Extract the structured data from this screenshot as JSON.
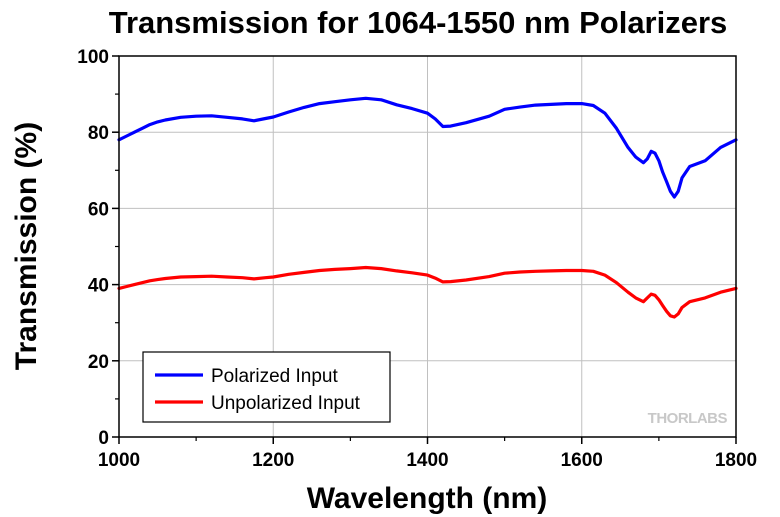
{
  "chart_data": {
    "type": "line",
    "title": "Transmission for 1064-1550 nm Polarizers",
    "xlabel": "Wavelength (nm)",
    "ylabel": "Transmission (%)",
    "xlim": [
      1000,
      1800
    ],
    "ylim": [
      0,
      100
    ],
    "x_ticks": [
      1000,
      1200,
      1400,
      1600,
      1800
    ],
    "y_ticks": [
      0,
      20,
      40,
      60,
      80,
      100
    ],
    "grid": true,
    "legend_position": "bottom-left",
    "watermark": "THORLABS",
    "series": [
      {
        "name": "Polarized Input",
        "color": "#0000ff",
        "x": [
          1000,
          1010,
          1020,
          1030,
          1040,
          1050,
          1060,
          1080,
          1100,
          1120,
          1140,
          1160,
          1175,
          1190,
          1200,
          1220,
          1240,
          1260,
          1280,
          1300,
          1320,
          1340,
          1360,
          1380,
          1400,
          1410,
          1420,
          1430,
          1450,
          1480,
          1500,
          1520,
          1540,
          1560,
          1580,
          1600,
          1615,
          1630,
          1645,
          1660,
          1670,
          1680,
          1685,
          1690,
          1695,
          1700,
          1705,
          1710,
          1715,
          1720,
          1725,
          1730,
          1740,
          1760,
          1780,
          1800
        ],
        "y": [
          78,
          79,
          80,
          81,
          82,
          82.7,
          83.2,
          83.9,
          84.2,
          84.3,
          83.9,
          83.5,
          83.0,
          83.6,
          84.0,
          85.3,
          86.5,
          87.5,
          88.0,
          88.5,
          88.9,
          88.5,
          87.2,
          86.2,
          85.0,
          83.5,
          81.5,
          81.6,
          82.5,
          84.2,
          86.0,
          86.6,
          87.1,
          87.3,
          87.5,
          87.5,
          87.0,
          85.0,
          81.0,
          76.0,
          73.5,
          72.0,
          73.0,
          75.0,
          74.5,
          72.5,
          69.5,
          67.0,
          64.5,
          63.0,
          64.5,
          68.0,
          71.0,
          72.5,
          76.0,
          78.0
        ]
      },
      {
        "name": "Unpolarized Input",
        "color": "#ff0000",
        "x": [
          1000,
          1010,
          1020,
          1030,
          1040,
          1050,
          1060,
          1080,
          1100,
          1120,
          1140,
          1160,
          1175,
          1190,
          1200,
          1220,
          1240,
          1260,
          1280,
          1300,
          1320,
          1340,
          1360,
          1380,
          1400,
          1410,
          1420,
          1430,
          1450,
          1480,
          1500,
          1520,
          1540,
          1560,
          1580,
          1600,
          1615,
          1630,
          1645,
          1660,
          1670,
          1680,
          1685,
          1690,
          1695,
          1700,
          1705,
          1710,
          1715,
          1720,
          1725,
          1730,
          1740,
          1760,
          1780,
          1800
        ],
        "y": [
          39,
          39.5,
          40,
          40.5,
          41,
          41.3,
          41.6,
          42.0,
          42.1,
          42.2,
          42.0,
          41.8,
          41.5,
          41.8,
          42.0,
          42.7,
          43.2,
          43.7,
          44.0,
          44.2,
          44.5,
          44.2,
          43.6,
          43.1,
          42.5,
          41.7,
          40.7,
          40.8,
          41.2,
          42.1,
          43.0,
          43.3,
          43.5,
          43.6,
          43.7,
          43.7,
          43.5,
          42.5,
          40.5,
          38.0,
          36.5,
          35.5,
          36.5,
          37.5,
          37.2,
          36.0,
          34.5,
          33.0,
          31.8,
          31.5,
          32.3,
          34.0,
          35.5,
          36.5,
          38.0,
          39.0
        ]
      }
    ]
  }
}
